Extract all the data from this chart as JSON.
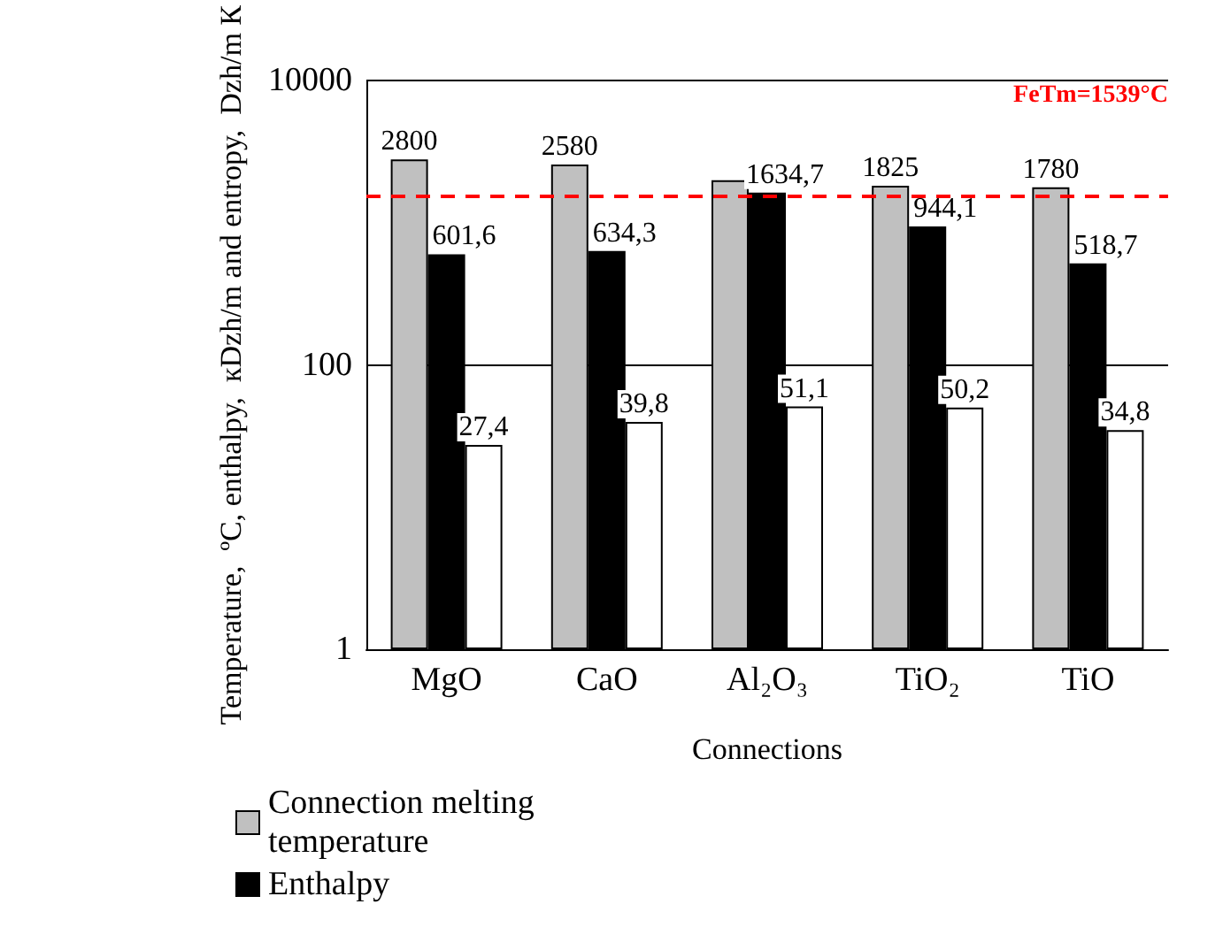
{
  "chart_data": {
    "type": "bar",
    "xlabel": "Connections",
    "ylabel": "Temperature,  ºC, enthalpy,  кDzh/m and entropy,  Dzh/m К",
    "categories": [
      "MgO",
      "CaO",
      "Al₂O₃",
      "TiO₂",
      "TiO"
    ],
    "series": [
      {
        "name": "Connection melting temperature",
        "color": "#c0c0c0",
        "values": [
          2800,
          2580,
          2000,
          1825,
          1780
        ],
        "value_labels": [
          "2800",
          "2580",
          null,
          "1825",
          "1780"
        ]
      },
      {
        "name": "Enthalpy",
        "color": "#000000",
        "values": [
          601.6,
          634.3,
          1634.7,
          944.1,
          518.7
        ],
        "value_labels": [
          "601,6",
          "634,3",
          "1634,7",
          "944,1",
          "518,7"
        ]
      },
      {
        "color": "#ffffff",
        "values": [
          27.4,
          39.8,
          51.1,
          50.2,
          34.8
        ],
        "value_labels": [
          "27,4",
          "39,8",
          "51,1",
          "50,2",
          "34,8"
        ]
      }
    ],
    "ylim": [
      1,
      10000
    ],
    "yticks": [
      1,
      100,
      {
        "value": 10000,
        "label": "10000"
      }
    ],
    "log": true,
    "grid": "y",
    "legend": "bottom left",
    "ref_lines": [
      {
        "axis": "y",
        "value": 1539,
        "label": "FeTm=1539°C",
        "color": "#ff0000",
        "line_style": "dashed"
      }
    ]
  }
}
